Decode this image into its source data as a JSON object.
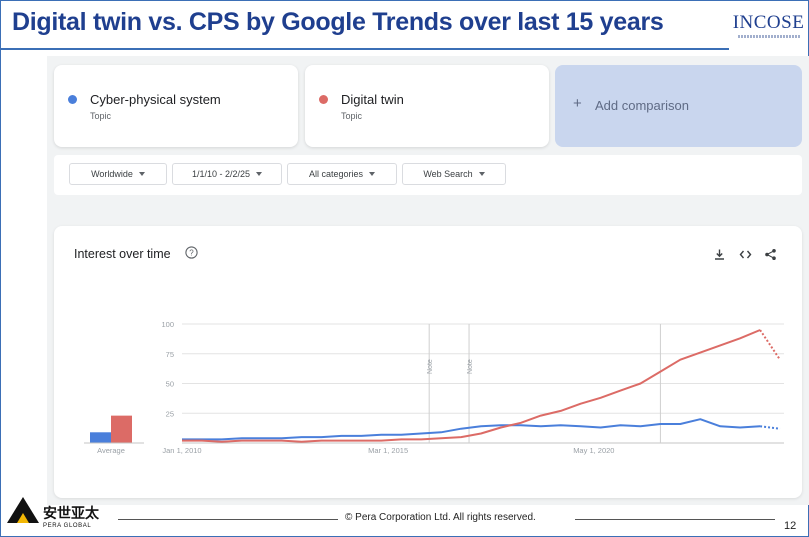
{
  "slide": {
    "title": "Digital twin vs. CPS by Google Trends over last 15 years",
    "logo_text": "INCOSE",
    "copyright": "© Pera Corporation Ltd. All rights reserved.",
    "page_number": "12",
    "footer_logo_cn": "安世亚太",
    "footer_logo_en": "PERA GLOBAL"
  },
  "terms": [
    {
      "name": "Cyber-physical system",
      "type": "Topic",
      "color": "#4a7fdb"
    },
    {
      "name": "Digital twin",
      "type": "Topic",
      "color": "#dc6b66"
    }
  ],
  "add_comparison": {
    "label": "Add comparison",
    "icon": "plus-icon"
  },
  "filters": [
    {
      "label": "Worldwide"
    },
    {
      "label": "1/1/10 - 2/2/25"
    },
    {
      "label": "All categories"
    },
    {
      "label": "Web Search"
    }
  ],
  "chart_panel": {
    "title": "Interest over time",
    "icons": [
      "help-icon",
      "download-icon",
      "embed-icon",
      "share-icon"
    ]
  },
  "chart_data": {
    "type": "line",
    "y_ticks": [
      "100",
      "75",
      "50",
      "25"
    ],
    "ylim": [
      0,
      100
    ],
    "x_tick_labels": [
      "Jan 1, 2010",
      "Mar 1, 2015",
      "May 1, 2020"
    ],
    "note_labels": [
      "Note",
      "Note"
    ],
    "average_label": "Average",
    "averages": [
      {
        "series": "Cyber-physical system",
        "value": 9
      },
      {
        "series": "Digital twin",
        "value": 23
      }
    ],
    "x": [
      2010.0,
      2010.5,
      2011.0,
      2011.5,
      2012.0,
      2012.5,
      2013.0,
      2013.5,
      2014.0,
      2014.5,
      2015.0,
      2015.5,
      2016.0,
      2016.5,
      2017.0,
      2017.5,
      2018.0,
      2018.5,
      2019.0,
      2019.5,
      2020.0,
      2020.5,
      2021.0,
      2021.5,
      2022.0,
      2022.5,
      2023.0,
      2023.5,
      2024.0,
      2024.5,
      2025.0
    ],
    "series": [
      {
        "name": "Cyber-physical system",
        "color": "#4a7fdb",
        "values": [
          3,
          3,
          3,
          4,
          4,
          4,
          5,
          5,
          6,
          6,
          7,
          7,
          8,
          9,
          12,
          14,
          15,
          15,
          14,
          15,
          14,
          13,
          15,
          14,
          16,
          16,
          20,
          14,
          13,
          14,
          12
        ]
      },
      {
        "name": "Digital twin",
        "color": "#dc6b66",
        "values": [
          2,
          2,
          1,
          2,
          2,
          2,
          1,
          2,
          2,
          2,
          2,
          3,
          3,
          4,
          5,
          8,
          13,
          17,
          23,
          27,
          33,
          38,
          44,
          50,
          60,
          70,
          76,
          82,
          88,
          95,
          70
        ]
      }
    ]
  }
}
